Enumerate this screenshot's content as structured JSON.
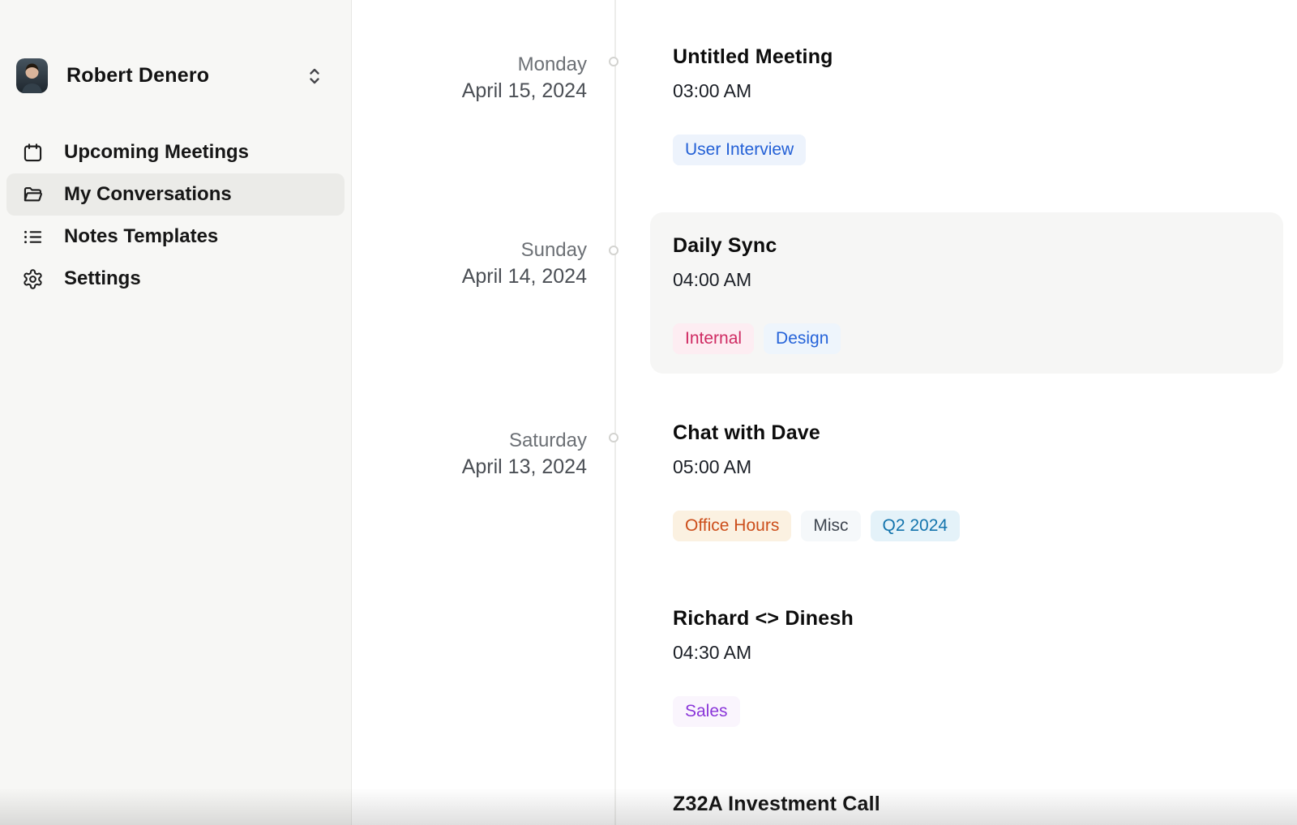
{
  "sidebar": {
    "profile": {
      "name": "Robert Denero",
      "avatar_icon": "user-photo",
      "switcher_icon": "chevron-up-down"
    },
    "items": [
      {
        "label": "Upcoming Meetings",
        "icon": "calendar",
        "selected": false
      },
      {
        "label": "My Conversations",
        "icon": "folder",
        "selected": true
      },
      {
        "label": "Notes Templates",
        "icon": "list",
        "selected": false
      },
      {
        "label": "Settings",
        "icon": "gear",
        "selected": false
      }
    ]
  },
  "timeline": {
    "groups": [
      {
        "day": "Monday",
        "date": "April 15, 2024",
        "meetings": [
          {
            "title": "Untitled Meeting",
            "time": "03:00 AM",
            "highlighted": false,
            "tags": [
              {
                "label": "User Interview",
                "color": "#2360d6",
                "bg": "#edf3fc"
              }
            ]
          }
        ]
      },
      {
        "day": "Sunday",
        "date": "April 14, 2024",
        "meetings": [
          {
            "title": "Daily Sync",
            "time": "04:00 AM",
            "highlighted": true,
            "tags": [
              {
                "label": "Internal",
                "color": "#cf2a62",
                "bg": "#fdedf2"
              },
              {
                "label": "Design",
                "color": "#2563d9",
                "bg": "#eef5fc"
              }
            ]
          }
        ]
      },
      {
        "day": "Saturday",
        "date": "April 13, 2024",
        "meetings": [
          {
            "title": "Chat with Dave",
            "time": "05:00 AM",
            "highlighted": false,
            "tags": [
              {
                "label": "Office Hours",
                "color": "#cc4e1b",
                "bg": "#fbf1e1"
              },
              {
                "label": "Misc",
                "color": "#3f4650",
                "bg": "#f5f8fa"
              },
              {
                "label": "Q2 2024",
                "color": "#1374ad",
                "bg": "#e4f2f9"
              }
            ]
          },
          {
            "title": "Richard <> Dinesh",
            "time": "04:30 AM",
            "highlighted": false,
            "tags": [
              {
                "label": "Sales",
                "color": "#8a36d9",
                "bg": "#faf5fd"
              }
            ]
          },
          {
            "title": "Z32A Investment Call",
            "time": null,
            "highlighted": false,
            "tags": []
          }
        ]
      }
    ]
  }
}
